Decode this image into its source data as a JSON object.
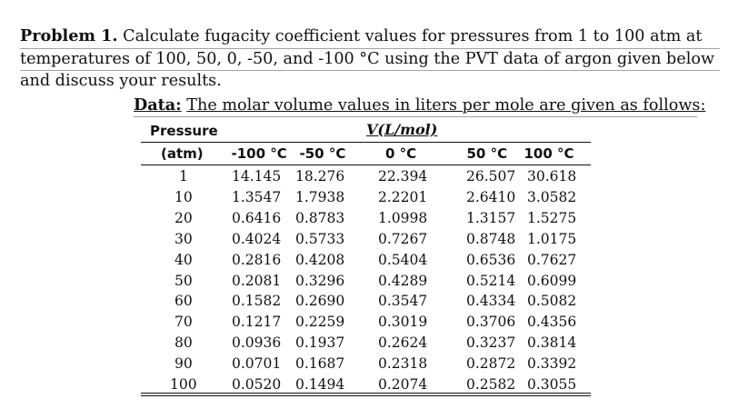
{
  "problem": {
    "label": "Problem 1.",
    "line1": "Calculate fugacity coefficient values for pressures from 1 to 100 atm at",
    "line2": "temperatures of 100, 50, 0, -50, and -100 °C using the PVT data of argon given below",
    "line3": "and discuss your results."
  },
  "data": {
    "label": "Data:",
    "text": "The molar volume values in liters per mole are given as follows:"
  },
  "table": {
    "pressure_header": "Pressure",
    "volume_header": "V(L/mol)",
    "unit_header": "(atm)",
    "temperatures": [
      "-100 °C",
      "-50 °C",
      "0 °C",
      "50 °C",
      "100 °C"
    ],
    "pressures": [
      "1",
      "10",
      "20",
      "30",
      "40",
      "50",
      "60",
      "70",
      "80",
      "90",
      "100"
    ],
    "values": [
      [
        "14.145",
        "18.276",
        "22.394",
        "26.507",
        "30.618"
      ],
      [
        "1.3547",
        "1.7938",
        "2.2201",
        "2.6410",
        "3.0582"
      ],
      [
        "0.6416",
        "0.8783",
        "1.0998",
        "1.3157",
        "1.5275"
      ],
      [
        "0.4024",
        "0.5733",
        "0.7267",
        "0.8748",
        "1.0175"
      ],
      [
        "0.2816",
        "0.4208",
        "0.5404",
        "0.6536",
        "0.7627"
      ],
      [
        "0.2081",
        "0.3296",
        "0.4289",
        "0.5214",
        "0.6099"
      ],
      [
        "0.1582",
        "0.2690",
        "0.3547",
        "0.4334",
        "0.5082"
      ],
      [
        "0.1217",
        "0.2259",
        "0.3019",
        "0.3706",
        "0.4356"
      ],
      [
        "0.0936",
        "0.1937",
        "0.2624",
        "0.3237",
        "0.3814"
      ],
      [
        "0.0701",
        "0.1687",
        "0.2318",
        "0.2872",
        "0.3392"
      ],
      [
        "0.0520",
        "0.1494",
        "0.2074",
        "0.2582",
        "0.3055"
      ]
    ]
  }
}
